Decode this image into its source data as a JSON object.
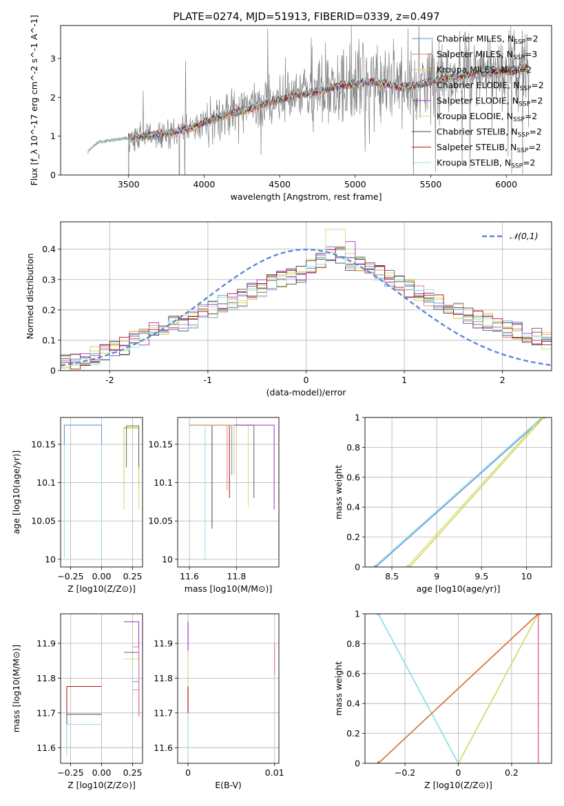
{
  "figure_title": "PLATE=0274, MJD=51913, FIBERID=0339, z=0.497",
  "colors": {
    "grid": "#b0b0b0",
    "data": "#808080",
    "normal_curve": "#5b87d6",
    "series": [
      "#5f8fd6",
      "#e8826a",
      "#d9cb4a",
      "#606060",
      "#9b30c8",
      "#c8e070",
      "#444444",
      "#b01010",
      "#8de0e8"
    ]
  },
  "chart_data": [
    {
      "type": "line",
      "title": "PLATE=0274, MJD=51913, FIBERID=0339, z=0.497",
      "xlabel": "wavelength [Angstrom, rest frame]",
      "ylabel": "Flux [f_λ 10^-17 erg cm^-2 s^-1 A^-1]",
      "xlim": [
        3050,
        6300
      ],
      "ylim": [
        0,
        3.85
      ],
      "xticks": [
        3500,
        4000,
        4500,
        5000,
        5500,
        6000
      ],
      "yticks": [
        0,
        1,
        2,
        3
      ],
      "grid": false,
      "legend_placement": "right",
      "legend": [
        {
          "label": "Chabrier MILES",
          "nssp": "2"
        },
        {
          "label": "Salpeter MILES",
          "nssp": "3"
        },
        {
          "label": "Kroupa MILES",
          "nssp": "2"
        },
        {
          "label": "Chabrier ELODIE",
          "nssp": "2"
        },
        {
          "label": "Salpeter ELODIE",
          "nssp": "2"
        },
        {
          "label": "Kroupa ELODIE",
          "nssp": "2"
        },
        {
          "label": "Chabrier STELIB",
          "nssp": "2"
        },
        {
          "label": "Salpeter STELIB",
          "nssp": "2"
        },
        {
          "label": "Kroupa STELIB",
          "nssp": "2"
        }
      ],
      "data_trend": {
        "x": [
          3230,
          3300,
          3400,
          3500,
          3600,
          3700,
          3800,
          3900,
          4000,
          4100,
          4200,
          4300,
          4400,
          4500,
          4600,
          4700,
          4800,
          4900,
          5000,
          5100,
          5200,
          5300,
          5400,
          5500,
          5600,
          5700,
          5800,
          5900,
          6000,
          6100,
          6150
        ],
        "y": [
          0.6,
          0.85,
          0.9,
          0.95,
          1.0,
          1.05,
          1.1,
          1.2,
          1.35,
          1.5,
          1.6,
          1.7,
          1.85,
          1.95,
          2.05,
          2.1,
          2.2,
          2.3,
          2.35,
          2.4,
          2.35,
          2.25,
          2.3,
          2.4,
          2.5,
          2.55,
          2.6,
          2.65,
          2.7,
          2.75,
          2.8
        ]
      },
      "model_start": 3500
    },
    {
      "type": "step",
      "xlabel": "(data-model)/error",
      "ylabel": "Normed distribution",
      "xlim": [
        -2.5,
        2.5
      ],
      "ylim": [
        0,
        0.49
      ],
      "xticks": [
        -2,
        -1,
        0,
        1,
        2
      ],
      "yticks": [
        0.0,
        0.1,
        0.2,
        0.3,
        0.4
      ],
      "grid": true,
      "legend": [
        {
          "label": "𝒩(0,1)"
        }
      ],
      "legend_placement": "top-right",
      "bin_edges": [
        -2.5,
        -2.4,
        -2.3,
        -2.2,
        -2.1,
        -2.0,
        -1.9,
        -1.8,
        -1.7,
        -1.6,
        -1.5,
        -1.4,
        -1.3,
        -1.2,
        -1.1,
        -1.0,
        -0.9,
        -0.8,
        -0.7,
        -0.6,
        -0.5,
        -0.4,
        -0.3,
        -0.2,
        -0.1,
        0.0,
        0.1,
        0.2,
        0.3,
        0.4,
        0.5,
        0.6,
        0.7,
        0.8,
        0.9,
        1.0,
        1.1,
        1.2,
        1.3,
        1.4,
        1.5,
        1.6,
        1.7,
        1.8,
        1.9,
        2.0,
        2.1,
        2.2,
        2.3,
        2.4,
        2.5
      ],
      "hist_mean": [
        0.025,
        0.03,
        0.04,
        0.05,
        0.06,
        0.07,
        0.08,
        0.1,
        0.11,
        0.13,
        0.14,
        0.15,
        0.16,
        0.17,
        0.19,
        0.2,
        0.22,
        0.23,
        0.24,
        0.26,
        0.27,
        0.29,
        0.3,
        0.31,
        0.32,
        0.34,
        0.36,
        0.39,
        0.38,
        0.36,
        0.35,
        0.33,
        0.32,
        0.3,
        0.29,
        0.27,
        0.25,
        0.24,
        0.22,
        0.21,
        0.2,
        0.18,
        0.17,
        0.16,
        0.15,
        0.14,
        0.13,
        0.12,
        0.11,
        0.1
      ]
    },
    {
      "type": "step",
      "xlabel": "Z [log10(Z/Z⊙)]",
      "ylabel": "age [log10(age/yr)]",
      "xlim": [
        -0.33,
        0.33
      ],
      "ylim": [
        9.99,
        10.185
      ],
      "xticks": [
        -0.25,
        0.0,
        0.25
      ],
      "xtick_labels": [
        "−0.25",
        "0.00",
        "0.25"
      ],
      "yticks": [
        10.0,
        10.05,
        10.1,
        10.15
      ],
      "grid": true
    },
    {
      "type": "step",
      "xlabel": "mass [log10(M/M⊙)]",
      "xlim": [
        11.55,
        11.98
      ],
      "ylim": [
        9.99,
        10.185
      ],
      "xticks": [
        11.6,
        11.8
      ],
      "yticks": [
        10.0,
        10.05,
        10.1,
        10.15
      ],
      "grid": true
    },
    {
      "type": "line",
      "xlabel": "age [log10(age/yr)]",
      "ylabel": "mass weight",
      "xlim": [
        8.2,
        10.28
      ],
      "ylim": [
        0,
        1
      ],
      "xticks": [
        8.5,
        9.0,
        9.5,
        10.0
      ],
      "yticks": [
        0.0,
        0.2,
        0.4,
        0.6,
        0.8,
        1.0
      ],
      "grid": true,
      "series": [
        {
          "x": [
            8.3,
            10.17
          ],
          "y": [
            0.0,
            1.0
          ]
        },
        {
          "x": [
            8.32,
            10.19
          ],
          "y": [
            0.0,
            1.0
          ]
        },
        {
          "x": [
            8.67,
            10.17
          ],
          "y": [
            0.0,
            1.0
          ]
        },
        {
          "x": [
            8.7,
            10.19
          ],
          "y": [
            0.0,
            1.0
          ]
        }
      ]
    },
    {
      "type": "step",
      "xlabel": "Z [log10(Z/Z⊙)]",
      "ylabel": "mass [log10(M/M⊙)]",
      "xlim": [
        -0.33,
        0.33
      ],
      "ylim": [
        11.555,
        11.985
      ],
      "xticks": [
        -0.25,
        0.0,
        0.25
      ],
      "xtick_labels": [
        "−0.25",
        "0.00",
        "0.25"
      ],
      "yticks": [
        11.6,
        11.7,
        11.8,
        11.9
      ],
      "grid": true
    },
    {
      "type": "scatter",
      "xlabel": "E(B-V)",
      "xlim": [
        -0.0012,
        0.0105
      ],
      "ylim": [
        11.555,
        11.985
      ],
      "xticks": [
        0.0,
        0.01
      ],
      "yticks": [
        11.6,
        11.7,
        11.8,
        11.9
      ],
      "grid": true
    },
    {
      "type": "line",
      "xlabel": "Z [log10(Z/Z⊙)]",
      "ylabel": "mass weight",
      "xlim": [
        -0.35,
        0.35
      ],
      "ylim": [
        0,
        1
      ],
      "xticks": [
        -0.2,
        0.0,
        0.2
      ],
      "yticks": [
        0.0,
        0.2,
        0.4,
        0.6,
        0.8,
        1.0
      ],
      "grid": true,
      "series": [
        {
          "x": [
            -0.3,
            0.0
          ],
          "y": [
            1.0,
            0.0
          ]
        },
        {
          "x": [
            0.0,
            0.3
          ],
          "y": [
            0.0,
            1.0
          ]
        },
        {
          "x": [
            -0.3,
            0.3
          ],
          "y": [
            0.0,
            1.0
          ]
        }
      ]
    }
  ]
}
